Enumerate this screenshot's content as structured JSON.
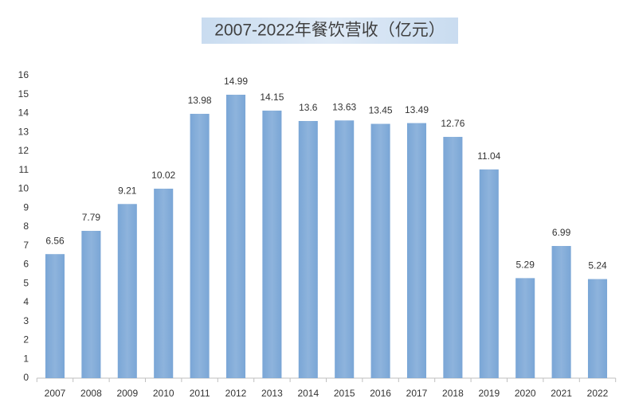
{
  "chart_data": {
    "type": "bar",
    "title": "2007-2022年餐饮营收（亿元）",
    "categories": [
      "2007",
      "2008",
      "2009",
      "2010",
      "2011",
      "2012",
      "2013",
      "2014",
      "2015",
      "2016",
      "2017",
      "2018",
      "2019",
      "2020",
      "2021",
      "2022"
    ],
    "values": [
      6.56,
      7.79,
      9.21,
      10.02,
      13.98,
      14.99,
      14.15,
      13.6,
      13.63,
      13.45,
      13.49,
      12.76,
      11.04,
      5.29,
      6.99,
      5.24
    ],
    "color": "#7aa6d6",
    "ylim": [
      0,
      16
    ],
    "yticks": [
      0,
      1,
      2,
      3,
      4,
      5,
      6,
      7,
      8,
      9,
      10,
      11,
      12,
      13,
      14,
      15,
      16
    ],
    "grid": false
  }
}
